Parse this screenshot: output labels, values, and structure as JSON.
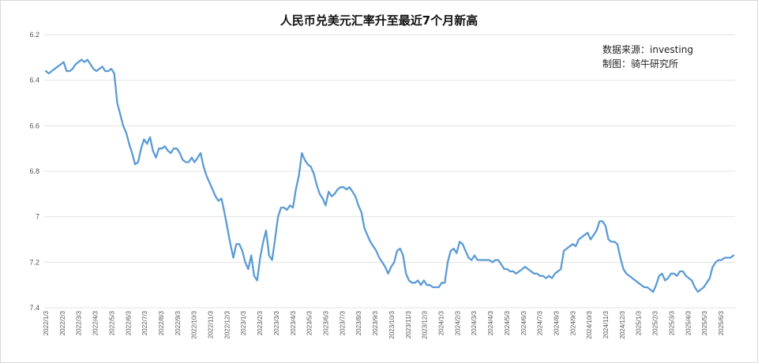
{
  "chart_data": {
    "type": "line",
    "title": "人民币兑美元汇率升至最近7个月新高",
    "source_note": "数据来源：investing",
    "author_note": "制图：骑牛研究所",
    "xlabel": "",
    "ylabel": "",
    "y_reversed": true,
    "ylim": [
      7.4,
      6.2
    ],
    "yticks": [
      6.2,
      6.4,
      6.6,
      6.8,
      7,
      7.2,
      7.4
    ],
    "ytick_labels": [
      "6.2",
      "6.4",
      "6.6",
      "6.8",
      "7",
      "7.2",
      "7.4"
    ],
    "grid": true,
    "line_color": "#5b9bd5",
    "x_tick_labels": [
      "2022/1/3",
      "2022/2/3",
      "2022/3/3",
      "2022/4/3",
      "2022/5/3",
      "2022/6/3",
      "2022/7/3",
      "2022/8/3",
      "2022/9/3",
      "2022/10/3",
      "2022/11/3",
      "2022/12/3",
      "2023/1/3",
      "2023/2/3",
      "2023/3/3",
      "2023/4/3",
      "2023/5/3",
      "2023/6/3",
      "2023/7/3",
      "2023/8/3",
      "2023/9/3",
      "2023/10/3",
      "2023/11/3",
      "2023/12/3",
      "2024/1/3",
      "2024/2/3",
      "2024/3/3",
      "2024/4/3",
      "2024/5/3",
      "2024/6/3",
      "2024/7/3",
      "2024/8/3",
      "2024/9/3",
      "2024/10/3",
      "2024/11/3",
      "2024/12/3",
      "2025/1/3",
      "2025/2/3",
      "2025/3/3",
      "2025/4/3",
      "2025/5/3",
      "2025/6/3"
    ],
    "series": [
      {
        "values": [
          6.36,
          6.37,
          6.36,
          6.35,
          6.34,
          6.33,
          6.32,
          6.36,
          6.36,
          6.35,
          6.33,
          6.32,
          6.31,
          6.32,
          6.31,
          6.33,
          6.35,
          6.36,
          6.35,
          6.34,
          6.36,
          6.36,
          6.35,
          6.37,
          6.5,
          6.55,
          6.6,
          6.63,
          6.68,
          6.72,
          6.77,
          6.76,
          6.7,
          6.66,
          6.68,
          6.65,
          6.71,
          6.74,
          6.7,
          6.7,
          6.69,
          6.71,
          6.72,
          6.7,
          6.7,
          6.72,
          6.75,
          6.76,
          6.76,
          6.74,
          6.76,
          6.74,
          6.72,
          6.78,
          6.82,
          6.85,
          6.88,
          6.91,
          6.93,
          6.92,
          6.98,
          7.05,
          7.12,
          7.18,
          7.12,
          7.12,
          7.15,
          7.2,
          7.23,
          7.17,
          7.26,
          7.28,
          7.18,
          7.11,
          7.06,
          7.17,
          7.19,
          7.1,
          7.0,
          6.96,
          6.96,
          6.97,
          6.95,
          6.96,
          6.88,
          6.82,
          6.72,
          6.75,
          6.77,
          6.78,
          6.81,
          6.86,
          6.9,
          6.92,
          6.95,
          6.89,
          6.91,
          6.9,
          6.88,
          6.87,
          6.87,
          6.88,
          6.87,
          6.89,
          6.91,
          6.95,
          6.98,
          7.05,
          7.08,
          7.11,
          7.13,
          7.15,
          7.18,
          7.2,
          7.22,
          7.25,
          7.22,
          7.2,
          7.15,
          7.14,
          7.17,
          7.25,
          7.28,
          7.29,
          7.29,
          7.28,
          7.3,
          7.28,
          7.3,
          7.3,
          7.31,
          7.31,
          7.31,
          7.29,
          7.29,
          7.2,
          7.15,
          7.14,
          7.16,
          7.11,
          7.12,
          7.15,
          7.18,
          7.19,
          7.17,
          7.19,
          7.19,
          7.19,
          7.19,
          7.19,
          7.2,
          7.19,
          7.19,
          7.21,
          7.23,
          7.23,
          7.24,
          7.24,
          7.25,
          7.24,
          7.23,
          7.22,
          7.23,
          7.24,
          7.25,
          7.25,
          7.26,
          7.26,
          7.27,
          7.26,
          7.27,
          7.25,
          7.24,
          7.23,
          7.15,
          7.14,
          7.13,
          7.12,
          7.13,
          7.1,
          7.09,
          7.08,
          7.07,
          7.1,
          7.08,
          7.06,
          7.02,
          7.02,
          7.04,
          7.1,
          7.11,
          7.11,
          7.12,
          7.18,
          7.23,
          7.25,
          7.26,
          7.27,
          7.28,
          7.29,
          7.3,
          7.31,
          7.31,
          7.32,
          7.33,
          7.3,
          7.26,
          7.25,
          7.28,
          7.27,
          7.25,
          7.25,
          7.26,
          7.24,
          7.24,
          7.26,
          7.27,
          7.28,
          7.31,
          7.33,
          7.32,
          7.31,
          7.29,
          7.27,
          7.22,
          7.2,
          7.19,
          7.19,
          7.18,
          7.18,
          7.18,
          7.17
        ]
      }
    ]
  }
}
